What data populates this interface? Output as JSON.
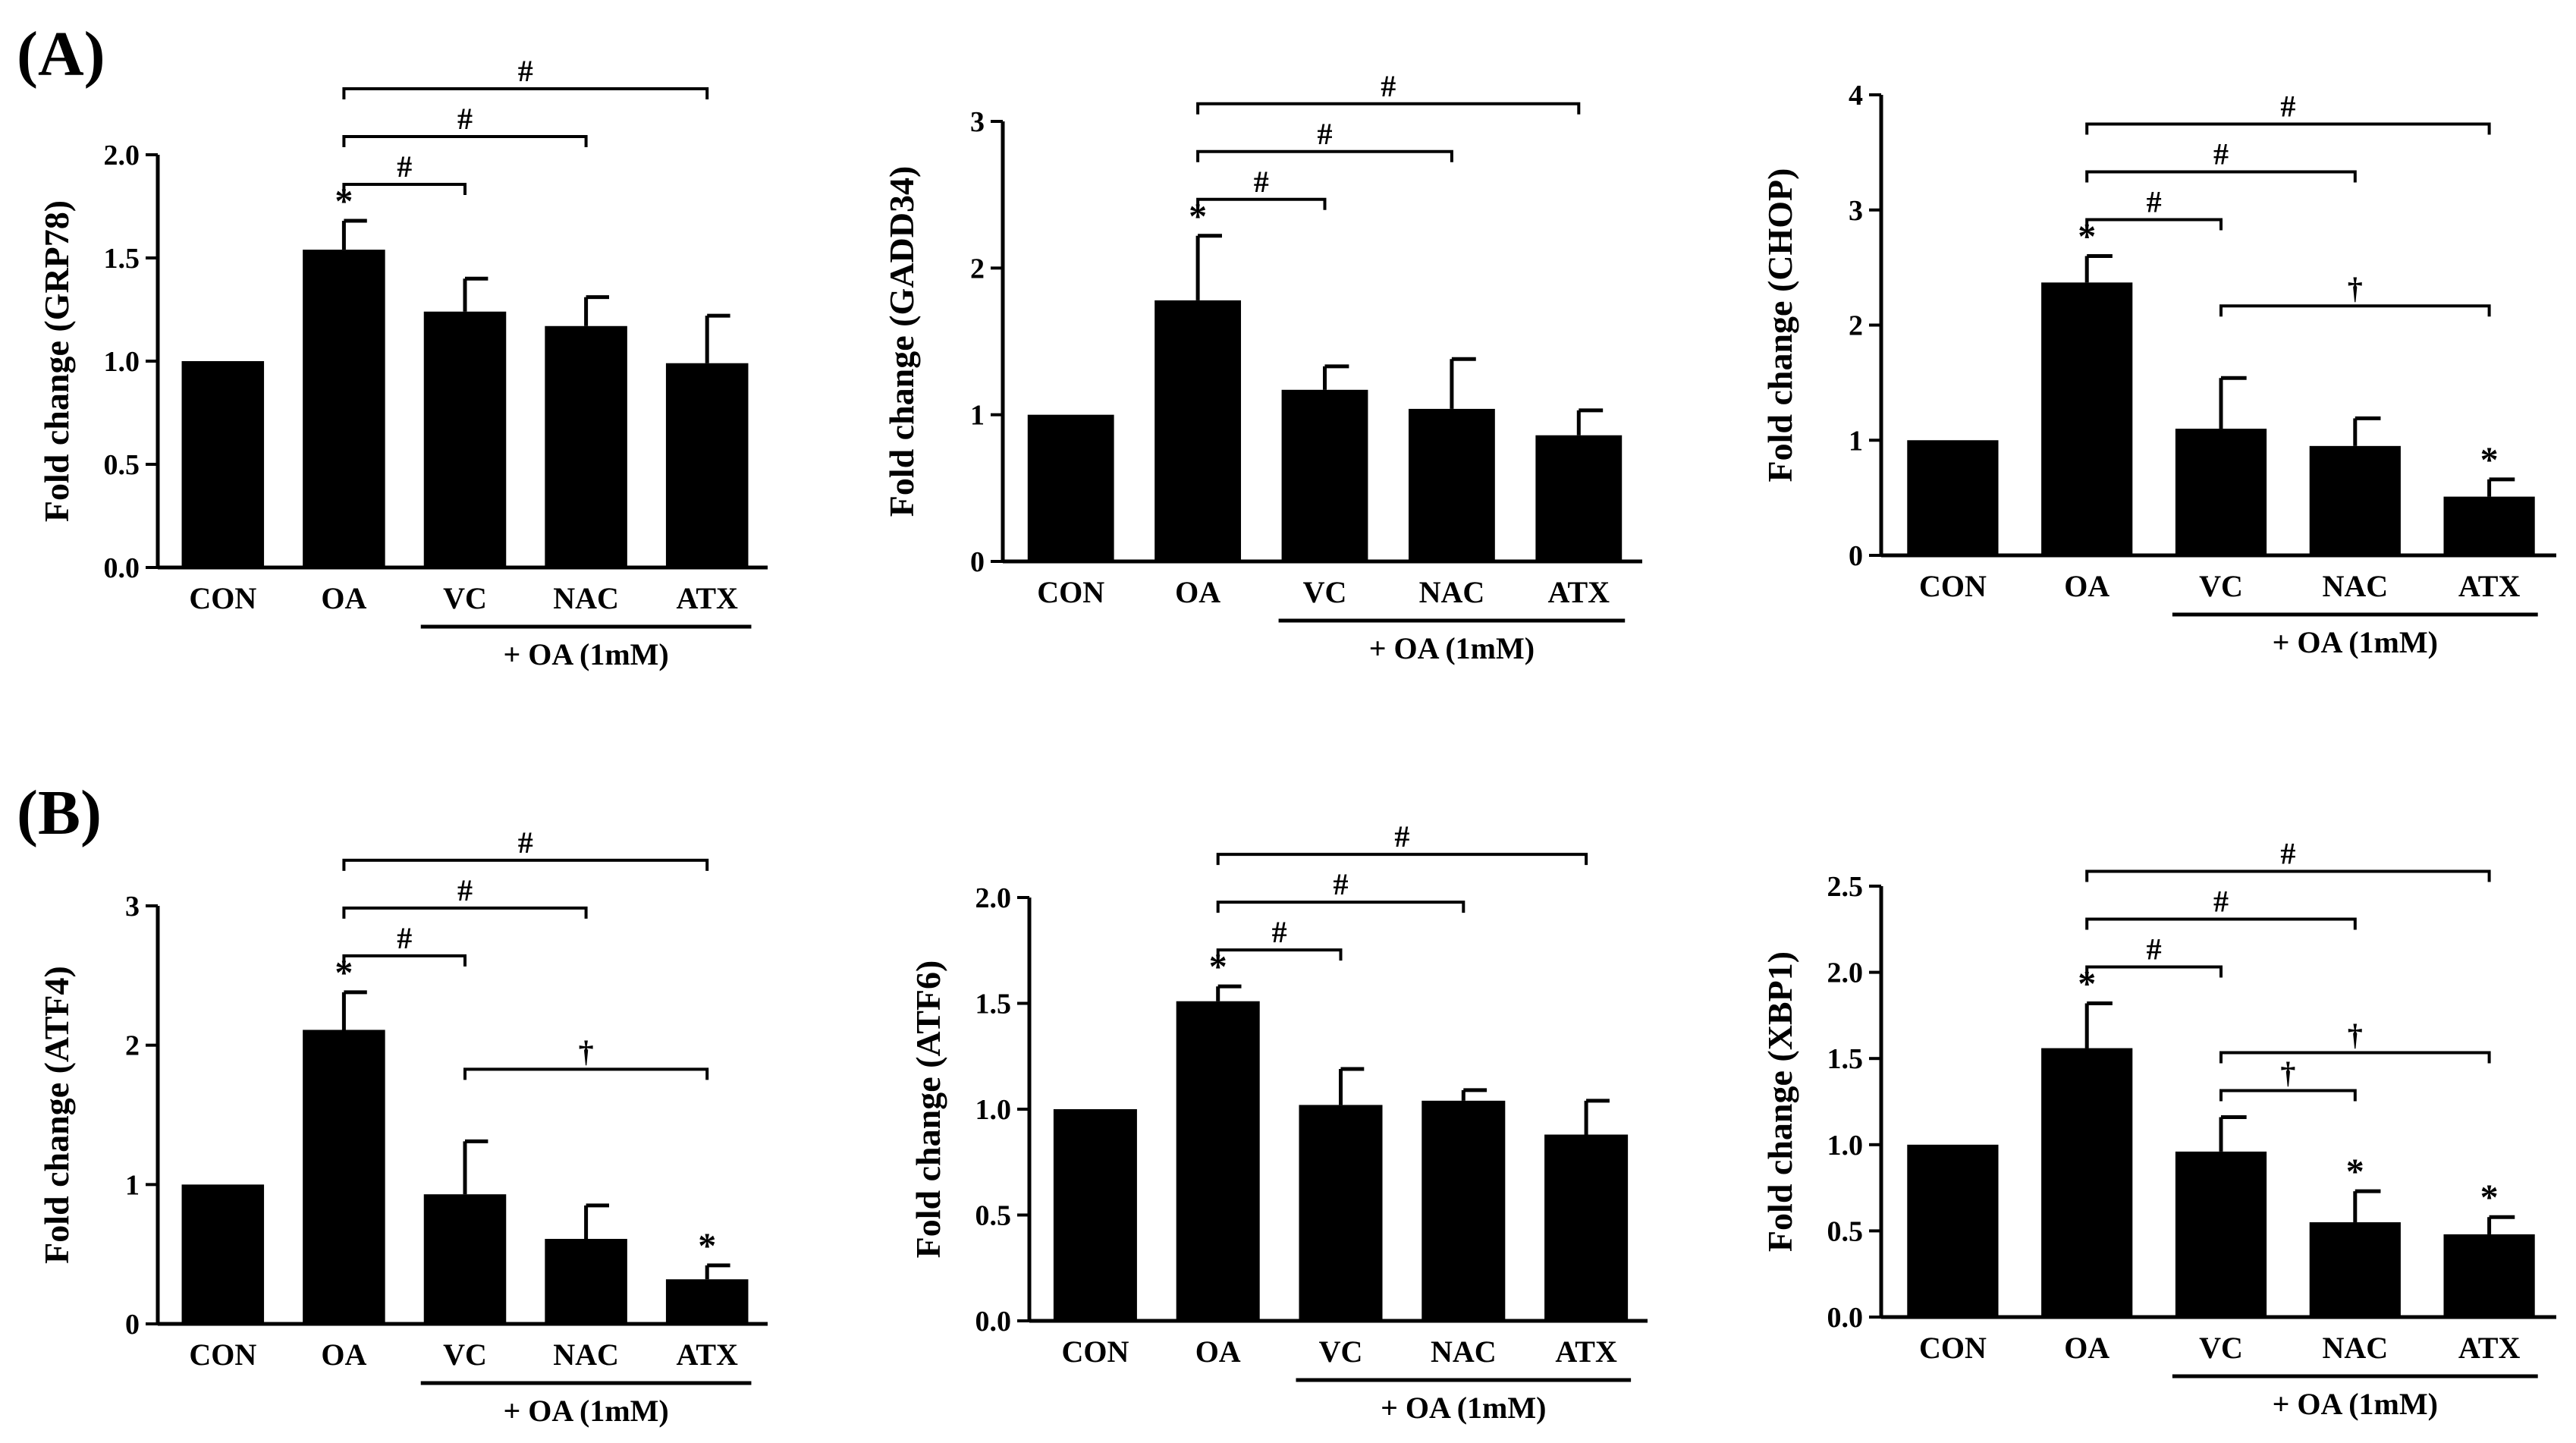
{
  "panels": [
    {
      "id": "A",
      "label": "(A)"
    },
    {
      "id": "B",
      "label": "(B)"
    }
  ],
  "chart_data": [
    {
      "type": "bar",
      "panel": "A",
      "position": "top-left",
      "title": "",
      "xlabel": "",
      "ylabel": "Fold change (GRP78)",
      "categories": [
        "CON",
        "OA",
        "VC",
        "NAC",
        "ATX"
      ],
      "values": [
        1.0,
        1.54,
        1.24,
        1.17,
        0.99
      ],
      "errors": [
        0.0,
        0.14,
        0.16,
        0.14,
        0.23
      ],
      "ylim": [
        0,
        2.0
      ],
      "yticks": [
        0.0,
        0.5,
        1.0,
        1.5,
        2.0
      ],
      "ytick_labels": [
        "0.0",
        "0.5",
        "1.0",
        "1.5",
        "2.0"
      ],
      "group_label": "+ OA (1mM)",
      "group_span": [
        "VC",
        "ATX"
      ],
      "markers": [
        {
          "category": "OA",
          "symbol": "*"
        }
      ],
      "brackets": [
        {
          "from": "OA",
          "to": "VC",
          "symbol": "#",
          "level": 1
        },
        {
          "from": "OA",
          "to": "NAC",
          "symbol": "#",
          "level": 2
        },
        {
          "from": "OA",
          "to": "ATX",
          "symbol": "#",
          "level": 3
        }
      ]
    },
    {
      "type": "bar",
      "panel": "A",
      "position": "top-middle",
      "title": "",
      "xlabel": "",
      "ylabel": "Fold change (GADD34)",
      "categories": [
        "CON",
        "OA",
        "VC",
        "NAC",
        "ATX"
      ],
      "values": [
        1.0,
        1.78,
        1.17,
        1.04,
        0.86
      ],
      "errors": [
        0.0,
        0.44,
        0.16,
        0.34,
        0.17
      ],
      "ylim": [
        0,
        3
      ],
      "yticks": [
        0,
        1,
        2,
        3
      ],
      "ytick_labels": [
        "0",
        "1",
        "2",
        "3"
      ],
      "group_label": "+ OA (1mM)",
      "group_span": [
        "VC",
        "ATX"
      ],
      "markers": [
        {
          "category": "OA",
          "symbol": "*"
        }
      ],
      "brackets": [
        {
          "from": "OA",
          "to": "VC",
          "symbol": "#",
          "level": 1
        },
        {
          "from": "OA",
          "to": "NAC",
          "symbol": "#",
          "level": 2
        },
        {
          "from": "OA",
          "to": "ATX",
          "symbol": "#",
          "level": 3
        }
      ]
    },
    {
      "type": "bar",
      "panel": "A",
      "position": "top-right",
      "title": "",
      "xlabel": "",
      "ylabel": "Fold change (CHOP)",
      "categories": [
        "CON",
        "OA",
        "VC",
        "NAC",
        "ATX"
      ],
      "values": [
        1.0,
        2.37,
        1.1,
        0.95,
        0.51
      ],
      "errors": [
        0.0,
        0.23,
        0.44,
        0.24,
        0.15
      ],
      "ylim": [
        0,
        4
      ],
      "yticks": [
        0,
        1,
        2,
        3,
        4
      ],
      "ytick_labels": [
        "0",
        "1",
        "2",
        "3",
        "4"
      ],
      "group_label": "+ OA (1mM)",
      "group_span": [
        "VC",
        "ATX"
      ],
      "markers": [
        {
          "category": "OA",
          "symbol": "*"
        },
        {
          "category": "ATX",
          "symbol": "*"
        }
      ],
      "brackets": [
        {
          "from": "OA",
          "to": "VC",
          "symbol": "#",
          "level": 1
        },
        {
          "from": "OA",
          "to": "NAC",
          "symbol": "#",
          "level": 2
        },
        {
          "from": "OA",
          "to": "ATX",
          "symbol": "#",
          "level": 3
        },
        {
          "from": "VC",
          "to": "ATX",
          "symbol": "†",
          "level": 0
        }
      ]
    },
    {
      "type": "bar",
      "panel": "B",
      "position": "bottom-left",
      "title": "",
      "xlabel": "",
      "ylabel": "Fold change (ATF4)",
      "categories": [
        "CON",
        "OA",
        "VC",
        "NAC",
        "ATX"
      ],
      "values": [
        1.0,
        2.11,
        0.93,
        0.61,
        0.32
      ],
      "errors": [
        0.0,
        0.27,
        0.38,
        0.24,
        0.1
      ],
      "ylim": [
        0,
        3
      ],
      "yticks": [
        0,
        1,
        2,
        3
      ],
      "ytick_labels": [
        "0",
        "1",
        "2",
        "3"
      ],
      "group_label": "+ OA (1mM)",
      "group_span": [
        "VC",
        "ATX"
      ],
      "markers": [
        {
          "category": "OA",
          "symbol": "*"
        },
        {
          "category": "ATX",
          "symbol": "*"
        }
      ],
      "brackets": [
        {
          "from": "OA",
          "to": "VC",
          "symbol": "#",
          "level": 1
        },
        {
          "from": "OA",
          "to": "NAC",
          "symbol": "#",
          "level": 2
        },
        {
          "from": "OA",
          "to": "ATX",
          "symbol": "#",
          "level": 3
        },
        {
          "from": "VC",
          "to": "ATX",
          "symbol": "†",
          "level": 0
        }
      ]
    },
    {
      "type": "bar",
      "panel": "B",
      "position": "bottom-middle",
      "title": "",
      "xlabel": "",
      "ylabel": "Fold change (ATF6)",
      "categories": [
        "CON",
        "OA",
        "VC",
        "NAC",
        "ATX"
      ],
      "values": [
        1.0,
        1.51,
        1.02,
        1.04,
        0.88
      ],
      "errors": [
        0.0,
        0.07,
        0.17,
        0.05,
        0.16
      ],
      "ylim": [
        0,
        2.0
      ],
      "yticks": [
        0.0,
        0.5,
        1.0,
        1.5,
        2.0
      ],
      "ytick_labels": [
        "0.0",
        "0.5",
        "1.0",
        "1.5",
        "2.0"
      ],
      "group_label": "+ OA (1mM)",
      "group_span": [
        "VC",
        "ATX"
      ],
      "markers": [
        {
          "category": "OA",
          "symbol": "*"
        }
      ],
      "brackets": [
        {
          "from": "OA",
          "to": "VC",
          "symbol": "#",
          "level": 1
        },
        {
          "from": "OA",
          "to": "NAC",
          "symbol": "#",
          "level": 2
        },
        {
          "from": "OA",
          "to": "ATX",
          "symbol": "#",
          "level": 3
        }
      ]
    },
    {
      "type": "bar",
      "panel": "B",
      "position": "bottom-right",
      "title": "",
      "xlabel": "",
      "ylabel": "Fold change (XBP1)",
      "categories": [
        "CON",
        "OA",
        "VC",
        "NAC",
        "ATX"
      ],
      "values": [
        1.0,
        1.56,
        0.96,
        0.55,
        0.48
      ],
      "errors": [
        0.0,
        0.26,
        0.2,
        0.18,
        0.1
      ],
      "ylim": [
        0,
        2.5
      ],
      "yticks": [
        0.0,
        0.5,
        1.0,
        1.5,
        2.0,
        2.5
      ],
      "ytick_labels": [
        "0.0",
        "0.5",
        "1.0",
        "1.5",
        "2.0",
        "2.5"
      ],
      "group_label": "+ OA (1mM)",
      "group_span": [
        "VC",
        "ATX"
      ],
      "markers": [
        {
          "category": "OA",
          "symbol": "*"
        },
        {
          "category": "NAC",
          "symbol": "*"
        },
        {
          "category": "ATX",
          "symbol": "*"
        }
      ],
      "brackets": [
        {
          "from": "OA",
          "to": "VC",
          "symbol": "#",
          "level": 1
        },
        {
          "from": "OA",
          "to": "NAC",
          "symbol": "#",
          "level": 2
        },
        {
          "from": "OA",
          "to": "ATX",
          "symbol": "#",
          "level": 3
        },
        {
          "from": "VC",
          "to": "NAC",
          "symbol": "†",
          "level": -1
        },
        {
          "from": "VC",
          "to": "ATX",
          "symbol": "†",
          "level": 0
        }
      ]
    }
  ]
}
